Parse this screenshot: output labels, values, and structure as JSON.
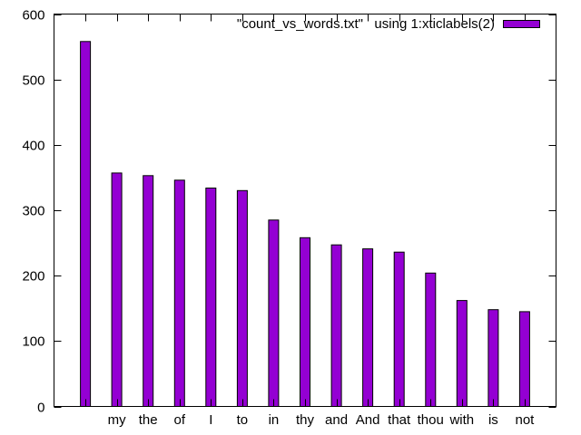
{
  "chart_data": {
    "type": "bar",
    "categories": [
      "",
      "my",
      "the",
      "of",
      "I",
      "to",
      "in",
      "thy",
      "and",
      "And",
      "that",
      "thou",
      "with",
      "is",
      "not"
    ],
    "series": [
      {
        "name": "\"count_vs_words.txt\"   using 1:xticlabels(2)",
        "values": [
          558,
          357,
          353,
          346,
          334,
          330,
          285,
          258,
          247,
          241,
          236,
          204,
          162,
          148,
          145
        ],
        "color": "#9400d3"
      }
    ],
    "ylim": [
      0,
      600
    ],
    "yticks": [
      0,
      100,
      200,
      300,
      400,
      500,
      600
    ],
    "grid": false,
    "legend_position": "top-right"
  }
}
